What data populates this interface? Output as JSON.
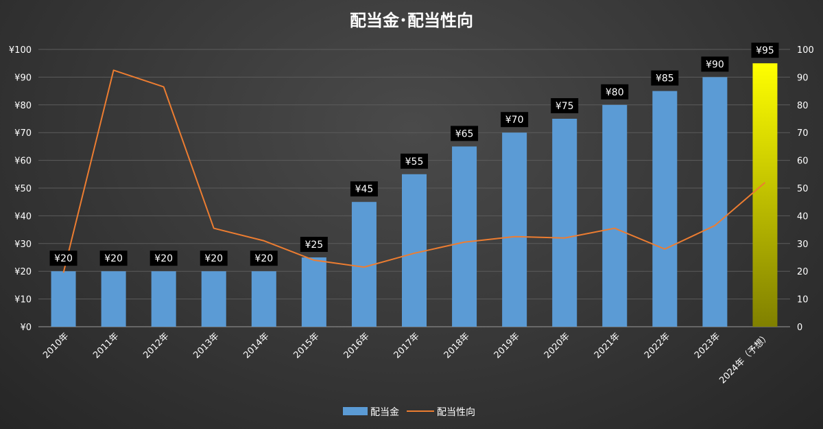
{
  "chart_data": {
    "type": "bar",
    "title": "配当金･配当性向",
    "categories": [
      "2010年",
      "2011年",
      "2012年",
      "2013年",
      "2014年",
      "2015年",
      "2016年",
      "2017年",
      "2018年",
      "2019年",
      "2020年",
      "2021年",
      "2022年",
      "2023年",
      "2024年（予想）"
    ],
    "series": [
      {
        "name": "配当金",
        "type": "bar",
        "axis": "left",
        "color": "#5b9bd5",
        "values": [
          20,
          20,
          20,
          20,
          20,
          25,
          45,
          55,
          65,
          70,
          75,
          80,
          85,
          90,
          95
        ],
        "data_labels": [
          "¥20",
          "¥20",
          "¥20",
          "¥20",
          "¥20",
          "¥25",
          "¥45",
          "¥55",
          "¥65",
          "¥70",
          "¥75",
          "¥80",
          "¥85",
          "¥90",
          "¥95"
        ],
        "highlight_last_color": [
          "#ffff00",
          "#808000"
        ]
      },
      {
        "name": "配当性向",
        "type": "line",
        "axis": "right",
        "color": "#ed7d31",
        "values": [
          19.5,
          92.5,
          86.5,
          35.5,
          31,
          24,
          21.5,
          26.5,
          30.5,
          32.5,
          32,
          35.5,
          28,
          36.5,
          52
        ]
      }
    ],
    "y_left": {
      "min": 0,
      "max": 100,
      "ticks": [
        "¥0",
        "¥10",
        "¥20",
        "¥30",
        "¥40",
        "¥50",
        "¥60",
        "¥70",
        "¥80",
        "¥90",
        "¥100"
      ]
    },
    "y_right": {
      "min": 0,
      "max": 100,
      "ticks": [
        "0",
        "10",
        "20",
        "30",
        "40",
        "50",
        "60",
        "70",
        "80",
        "90",
        "100"
      ]
    },
    "grid": true,
    "legend_position": "bottom"
  }
}
